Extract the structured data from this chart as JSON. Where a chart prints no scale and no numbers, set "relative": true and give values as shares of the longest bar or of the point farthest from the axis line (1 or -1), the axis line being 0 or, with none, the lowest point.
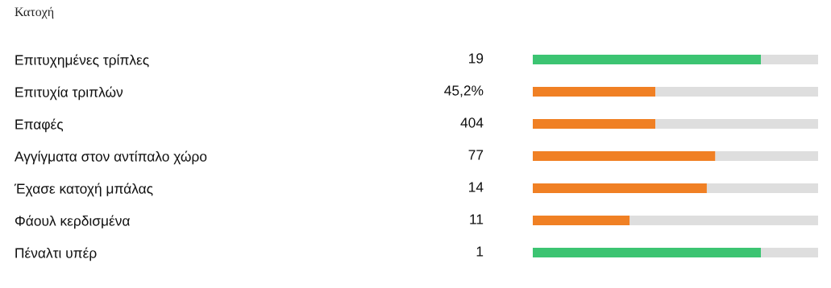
{
  "chart_data": {
    "type": "bar",
    "orientation": "horizontal",
    "stacked": true,
    "relative": true,
    "title": "Κατοχή",
    "tick_labels": "y",
    "annotations": [
      "19",
      "45,2%",
      "404",
      "77",
      "14",
      "11",
      "1"
    ],
    "legend": false,
    "grid": false,
    "categories": [
      "Επιτυχημένες τρίπλες",
      "Επιτυχία τριπλών",
      "Επαφές",
      "Αγγίγματα στον αντίπαλο χώρο",
      "Έχασε κατοχή μπάλας",
      "Φάουλ κερδισμένα",
      "Πέναλτι υπέρ"
    ],
    "series": [
      {
        "colors": [
          "#3cc472",
          "#f08024",
          "#f08024",
          "#f08024",
          "#f08024",
          "#f08024",
          "#3cc472"
        ],
        "values": [
          0.8,
          0.43,
          0.43,
          0.64,
          0.61,
          0.34,
          0.8
        ]
      },
      {
        "color": "#dedede",
        "values": [
          0.2,
          0.57,
          0.57,
          0.36,
          0.39,
          0.66,
          0.2
        ]
      }
    ]
  }
}
